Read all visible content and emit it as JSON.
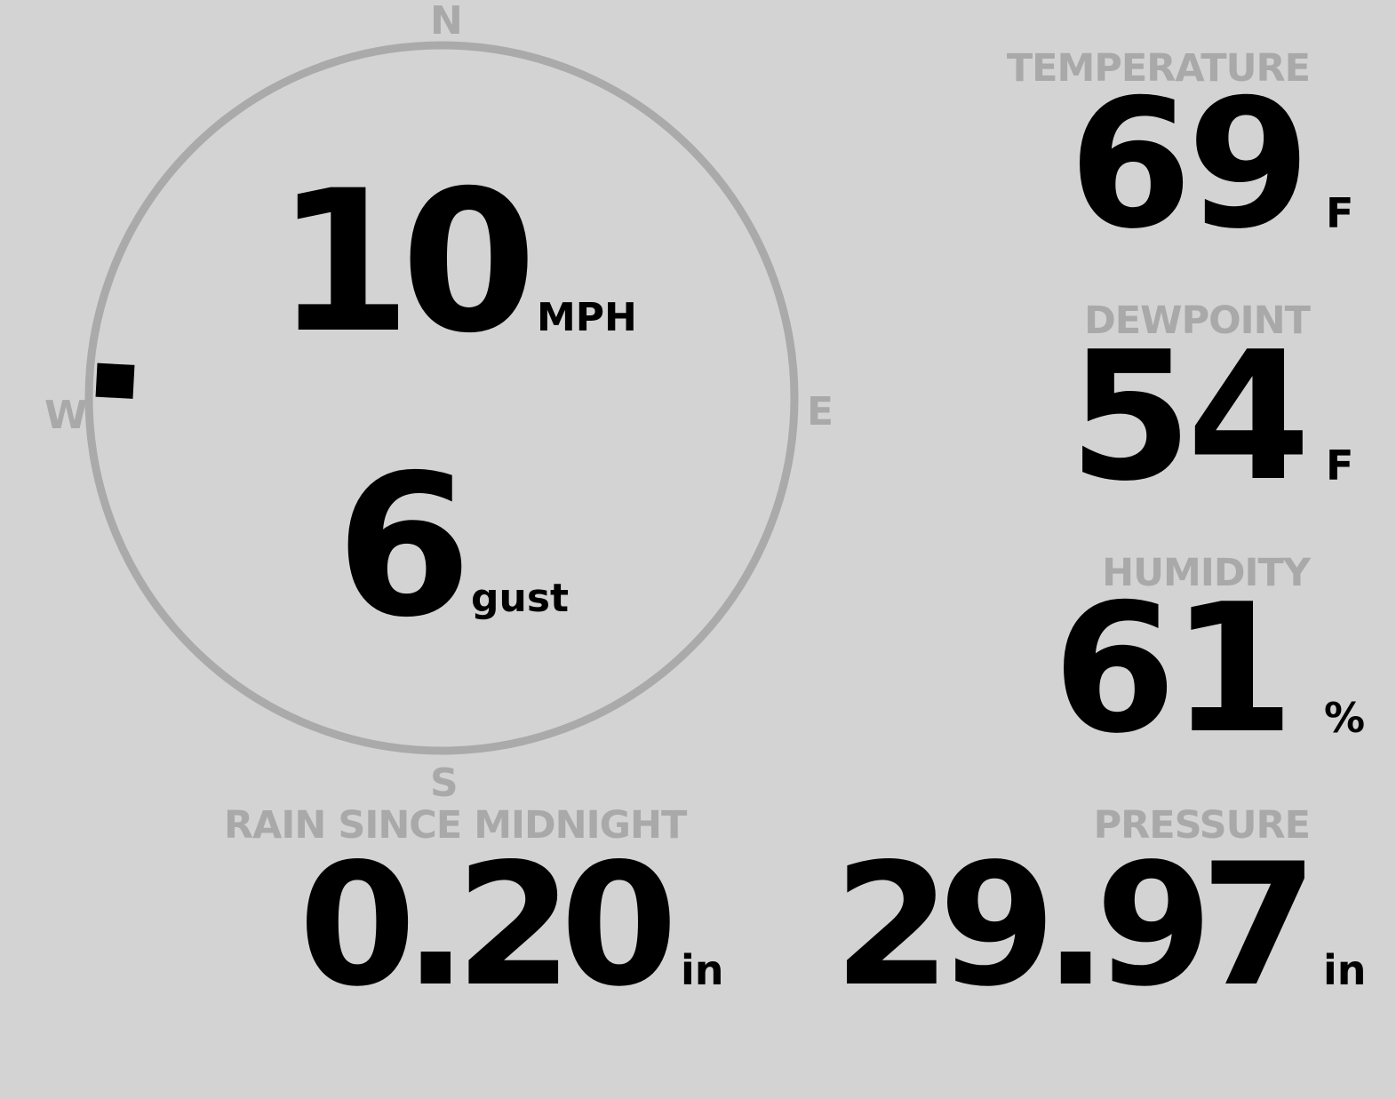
{
  "colors": {
    "background": "#d3d3d3",
    "label": "#a9a9a9",
    "value": "#000000",
    "compass_ring": "#aaaaaa"
  },
  "wind": {
    "compass": {
      "n": "N",
      "e": "E",
      "s": "S",
      "w": "W"
    },
    "direction_deg": 273,
    "speed": "10",
    "speed_unit": "MPH",
    "gust": "6",
    "gust_unit": "gust"
  },
  "temperature": {
    "label": "TEMPERATURE",
    "value": "69",
    "unit": "F"
  },
  "dewpoint": {
    "label": "DEWPOINT",
    "value": "54",
    "unit": "F"
  },
  "humidity": {
    "label": "HUMIDITY",
    "value": "61",
    "unit": "%"
  },
  "rain": {
    "label": "RAIN SINCE MIDNIGHT",
    "value": "0.20",
    "unit": "in"
  },
  "pressure": {
    "label": "PRESSURE",
    "value": "29.97",
    "unit": "in"
  }
}
